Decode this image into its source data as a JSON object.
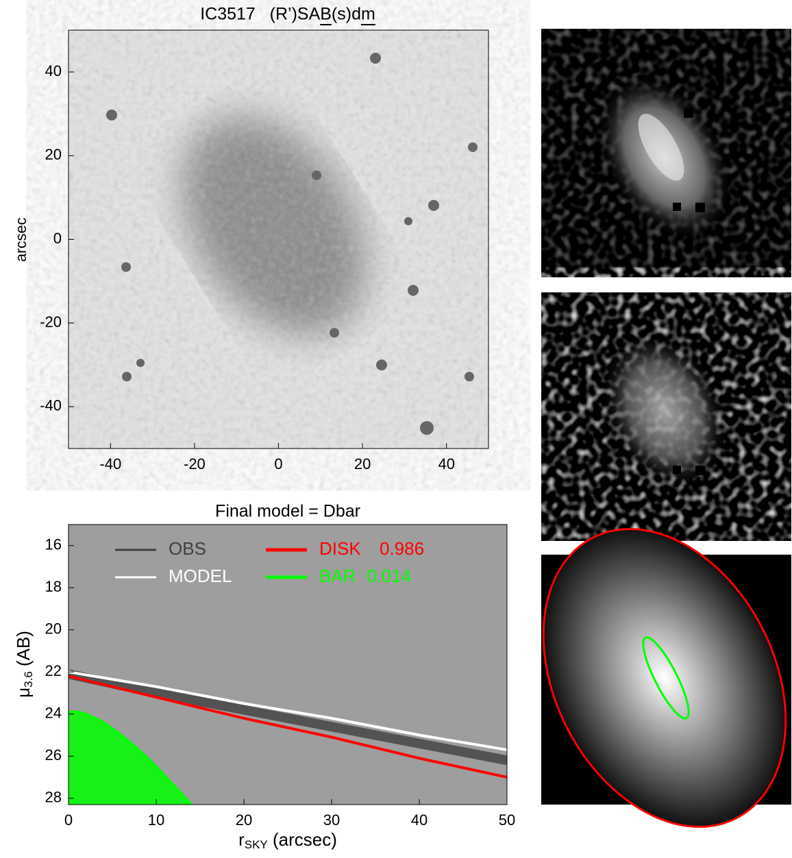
{
  "chart_data": [
    {
      "type": "image",
      "title": "IC3517   (R’)SAB(s)dm",
      "underline_chars": [
        "B",
        "m"
      ],
      "ylabel": "arcsec",
      "xlim": [
        -50,
        50
      ],
      "xticks": [
        -40,
        -20,
        0,
        20,
        40
      ],
      "ylim": [
        -50,
        50
      ],
      "yticks": [
        -40,
        -20,
        0,
        20,
        40
      ]
    },
    {
      "type": "line",
      "title": "Final model = Dbar",
      "xlabel": {
        "main": "r",
        "sub": "SKY",
        "rest": " (arcsec)"
      },
      "ylabel": {
        "main": "μ",
        "sub": "3.6",
        "rest": " (AB)"
      },
      "xlim": [
        0,
        50
      ],
      "xticks": [
        0,
        10,
        20,
        30,
        40,
        50
      ],
      "ylim": [
        28.3,
        15.0
      ],
      "yticks": [
        16,
        18,
        20,
        22,
        24,
        26,
        28
      ],
      "background": "#9e9e9e",
      "series": [
        {
          "name": "OBS",
          "color": "#404040",
          "x": [
            0,
            10,
            20,
            30,
            40,
            50
          ],
          "values": [
            22.1,
            23.0,
            23.8,
            24.6,
            25.4,
            26.2
          ]
        },
        {
          "name": "MODEL",
          "color": "#ffffff",
          "x": [
            0,
            10,
            20,
            30,
            40,
            50
          ],
          "values": [
            22.0,
            22.7,
            23.5,
            24.2,
            25.0,
            25.7
          ]
        },
        {
          "name": "DISK",
          "fraction": 0.986,
          "color": "#ff0000",
          "x": [
            0,
            10,
            20,
            30,
            40,
            50
          ],
          "values": [
            22.2,
            23.2,
            24.2,
            25.1,
            26.1,
            27.0
          ]
        },
        {
          "name": "BAR",
          "fraction": 0.014,
          "color": "#00ff00",
          "x": [
            0,
            1,
            2,
            4,
            6,
            8,
            10,
            12,
            14
          ],
          "values": [
            23.9,
            23.9,
            24.0,
            24.4,
            25.0,
            25.7,
            26.5,
            27.4,
            28.3
          ]
        }
      ]
    }
  ]
}
